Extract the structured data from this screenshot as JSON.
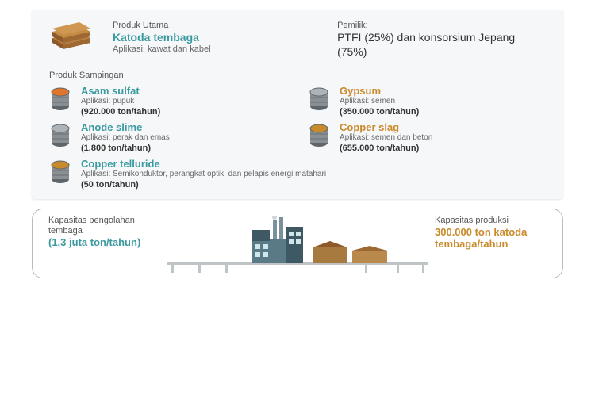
{
  "colors": {
    "teal": "#3a9aa0",
    "amber": "#c88a2a",
    "copper_dark": "#8e5a2b",
    "copper_light": "#c58a44",
    "grey": "#8a8f93",
    "grey_dark": "#5f666b",
    "orange": "#e0762b",
    "bg": "#f5f7f8",
    "factory": "#5a7a88",
    "factory_dark": "#3f5964",
    "track": "#bfc4c7"
  },
  "main": {
    "label": "Produk Utama",
    "title": "Katoda tembaga",
    "application": "Aplikasi: kawat dan kabel"
  },
  "owner": {
    "label": "Pemilik:",
    "text": "PTFI (25%) dan konsorsium Jepang (75%)"
  },
  "byproducts": {
    "label": "Produk Sampingan",
    "items": [
      {
        "name": "Asam sulfat",
        "color": "teal",
        "icon": "barrel-orange",
        "application": "Aplikasi: pupuk",
        "capacity": "(920.000 ton/tahun)"
      },
      {
        "name": "Gypsum",
        "color": "amber",
        "icon": "barrel-grey",
        "application": "Aplikasi: semen",
        "capacity": "(350.000 ton/tahun)"
      },
      {
        "name": "Anode slime",
        "color": "teal",
        "icon": "barrel-grey",
        "application": "Aplikasi: perak dan emas",
        "capacity": "(1.800 ton/tahun)"
      },
      {
        "name": "Copper slag",
        "color": "amber",
        "icon": "barrel-amber",
        "application": "Aplikasi: semen dan beton",
        "capacity": "(655.000 ton/tahun)"
      },
      {
        "name": "Copper telluride",
        "color": "teal",
        "icon": "barrel-amber",
        "application": "Aplikasi: Semikonduktor, perangkat optik, dan pelapis energi matahari",
        "capacity": "(50 ton/tahun)",
        "span": 2
      }
    ]
  },
  "factory": {
    "left_label": "Kapasitas pengolahan tembaga",
    "left_value": "(1,3 juta ton/tahun)",
    "right_label": "Kapasitas produksi",
    "right_value": "300.000 ton katoda tembaga/tahun"
  }
}
